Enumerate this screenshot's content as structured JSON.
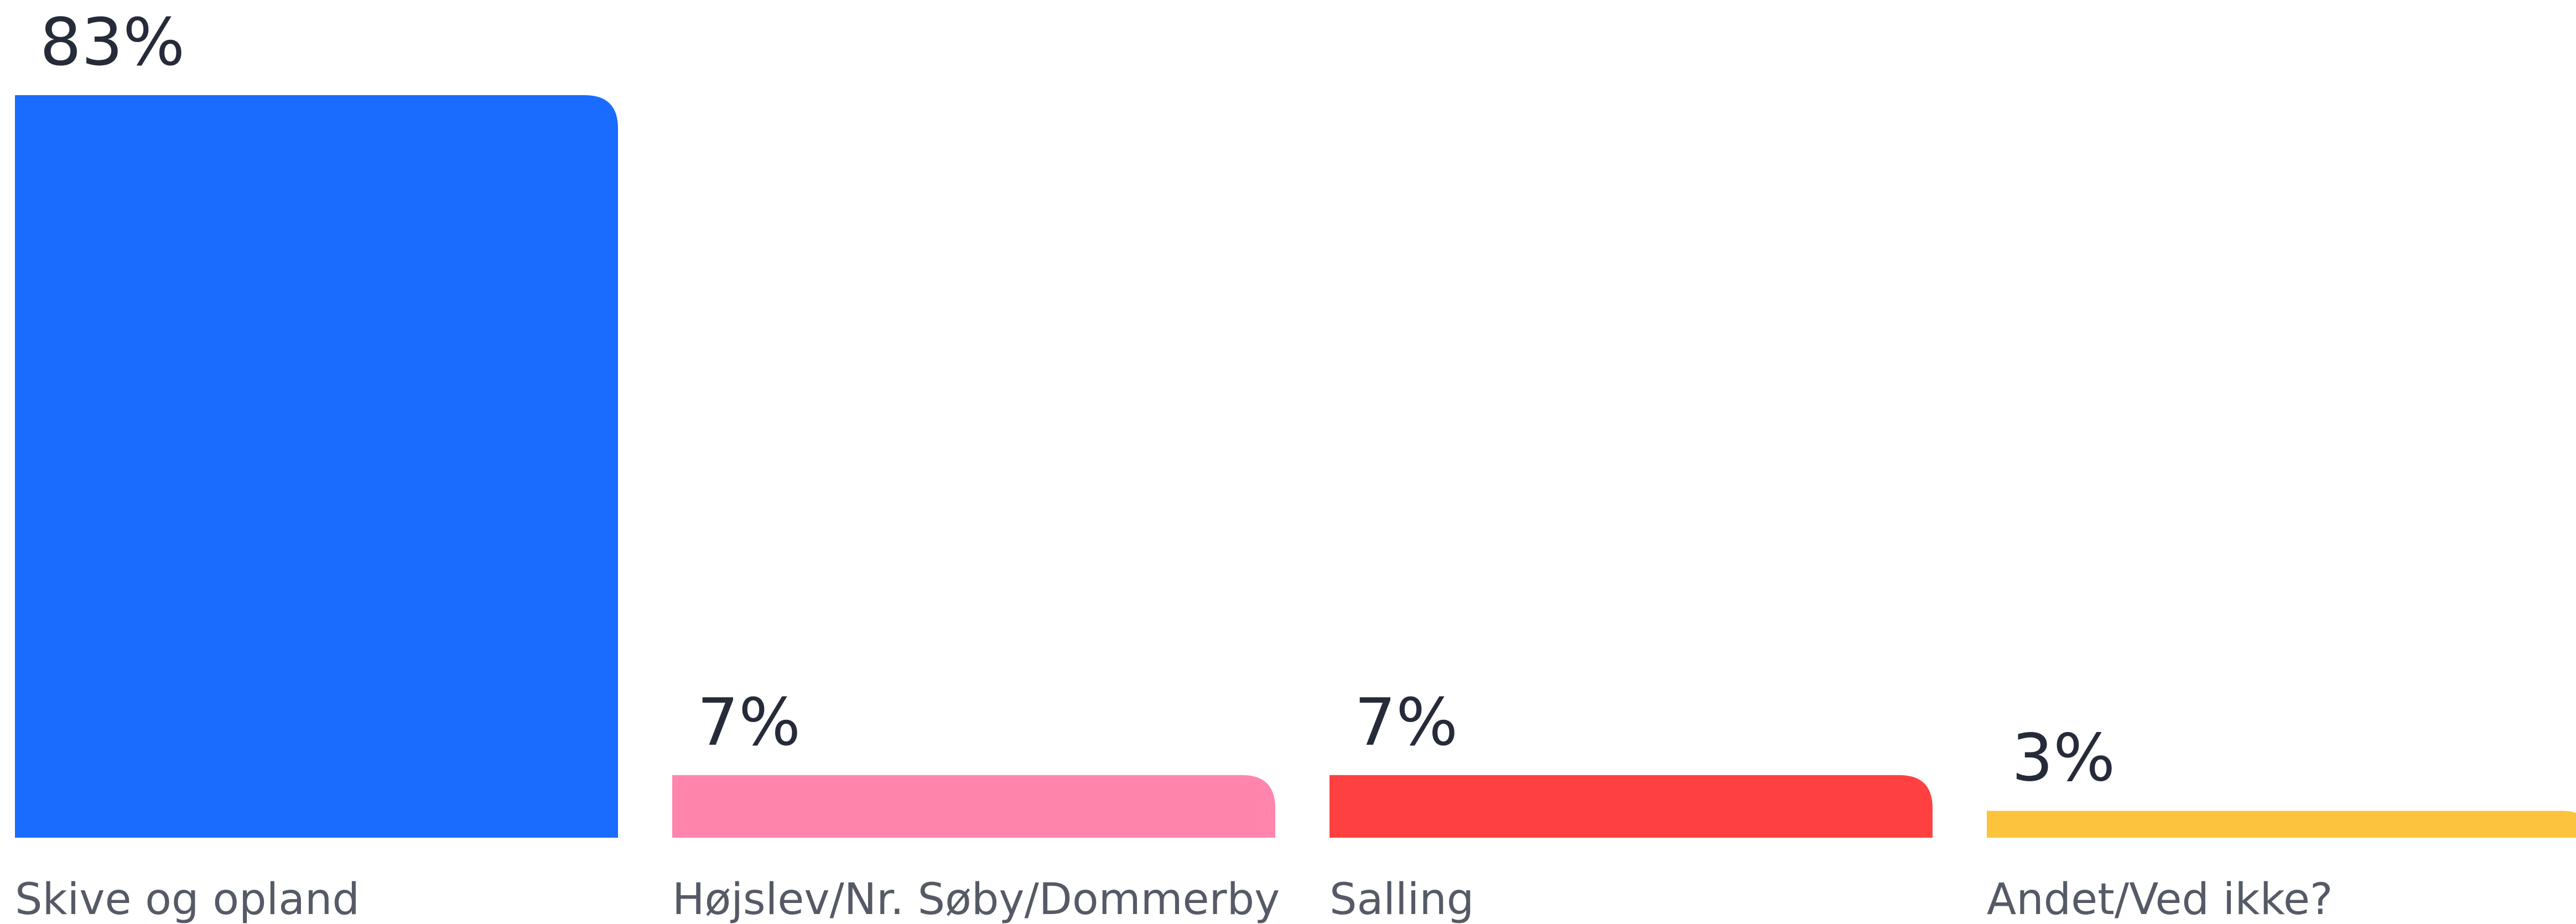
{
  "chart_data": {
    "type": "bar",
    "categories": [
      "Skive og opland",
      "Højslev/Nr. Søby/Dommerby",
      "Salling",
      "Andet/Ved ikke?"
    ],
    "values": [
      83,
      7,
      7,
      3
    ],
    "value_labels": [
      "83%",
      "7%",
      "7%",
      "3%"
    ],
    "colors": [
      "#1a6bff",
      "#ff85ad",
      "#ff4040",
      "#fcc43c"
    ]
  }
}
